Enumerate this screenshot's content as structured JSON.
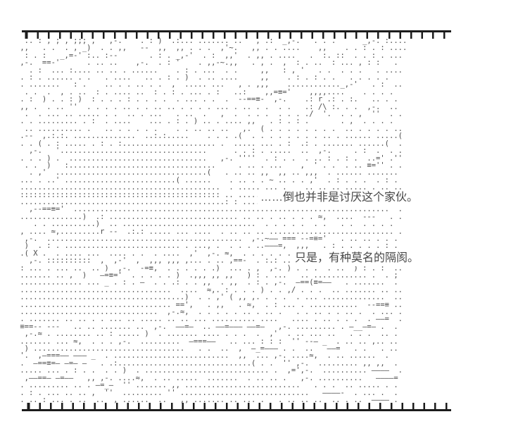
{
  "panel": {
    "type_note": "ascii-art comic panel",
    "dialogue1": "……倒也并非是讨厌这个家伙。",
    "dialogue2": "只是，有种莫名的隔阂。",
    "ink_color": "#4a4a4a",
    "border_color": "#1c1c1c",
    "background_color": "#ffffff"
  },
  "ascii_art": {
    "lines": [
      "  .. : , ; , ;;; ,   ,-.    . : )  .:... ....... ..   , .:  _,-.   . . .      _,-. :....",
      " ,,   . .  . , _)  . . ,,   --  ,,  ,, . . .  ,'~.   ,, . . ....    ,,    . . : . : ....",
      "  : . :   _,=-' :.. :--       . : . _,-'  . :  ,,'  . ,, . ....   .  :. ::  . . : . ...",
      " ,-.  ==-'      . .. ..    ,-.  . : '    . ,,-~.,,   . , .  ,  : . ..  : ... , : :   . ",
      "   . :  ... :.... .. .. . ......    . : . ...  . .     ,,   : , '   . .  . . .   . ....",
      " . : . ...... . .   . ....   .. . : . )  . .. ....     ,,    . : . : . .   . . . . .   ",
      " . .......   : .    .. . . .. . .  ,  ..... ...   , . ,,,    ............_,-'   . :  ..",
      "  . .  .  , . ..  : . .... ..  : . : . ... . :   ..:    ,,=≡='    ,,,,....    . . . .  ",
      " . :  ) . . : )  : . . . : . . . .  . ... . .  .  --==≡-  ,-.    .: r .: . :.   .. . . ",
      " ,, .  . .. ''  . . . . .. . . .. .. . . . . ... . .. . .  . .   .: /\\ :. . .  ,-.  .. ",
      "  .  . ... .. ..... . .  .. . ...   . ..  .   ,  .  . . .  . . . ./  '.  . . ,  ''  . .",
      " . . ......... . :  . ....    ... . : . ) .. . .... ,,   . : . : .       . ,  . . . .  ",
      "  .. .......... .   .. . . . . .    . . .. .. ..   ,.  ( . . . . . . . .  .. . . . . ..",
      " .--  ,.:.:. ..............  ..:.:.....    . . . .(  . . . . . . . . .. . ...... .....(",
      " . . ( . : ..... . : . :..................... .  ..... ... . :  .: . ....... ......(  .",
      "   ,-.   '.................................      . . : . .....  ..  ,-.     . :  .  . .",
      " . . . ) .  ...............................   ,-. ''''  . : . .  . .. : . : .  ..=' .''",
      "  . .  )   :.................................     . .. . ...    ,  ' . .  . .. ≡='' . .",
      "   . ,'  ..................................(   . .. .. ,,  ,, .. ,,,  . ...... ....... ",
      " ... . ..' .........................( ......    . .. . . ~ .. . . ,'  . : . . .  . : . ",
      " .............................................  . ..... ... .    .. .. .. ..... . .. ..",
      " ::::::::::::::::::::::::::::::::::::::::::::: .. ..... ...      .. ... .. ...... .. : .",
      " ..............................................: : ...................................:",
      "   ,--==≡='  .......................................................................  . ",
      " ..............)  .: ............................. .. .. . .. . . . ≈,  ....  ---   . .",
      "    . . ..........)  .. ..............................  . . . . .  . .   . .  . . . .  ",
      " , .... ≈,.........r --  .:.: ..... ... ....  . .. .. .. ............................ .",
      "  ,-.  ............................................  ,-.~—— === --=≡='   . .. .. . . . ",
      "  )  . : . .......................... . ..., .  . . . ..—–—=,  ,,,   . : . . . . . : . ",
      " .( X .  . .... ...  .... . .  . ....  ,'  ,-. ≈,  . . . . . . . . . . .  . . : . :  . ",
      "   ,-. ::::::::::  ,  ,-'  ,  ,,, ,,, ,... . .. ,==-  . :.: .. ::  ... .. ,.:  .  ,-.  ",
      " : ... . ... ..  .. )  ,-.  -=≡,  . . . . . .)  ... . ,  ,-. ) . . .  . ..  ) : . :  ..",
      " ....... .. ,  )   —=≡='  . . . . . )  .,,, ,, ,,   ) : . ...   .. ............ .  . ; ",
      " .............. ... _ . : . —  . . .: . . ,,  . ,,  . : . ,-.  —==(≡=——   . .......  . ",
      " ..................................  ....  ≈,. : . . . ) . . ,/ . . .  .. ....... .. ..",
      " .....................................)  . . ,' ( ,, ,. . . .  . ... ..............  ..",
      " .................................. ==',   . ,,   . ≈,  . : ... . ...........  --==≡ ..",
      " ...............................  ,-.≈,  . . . . . .. . .. .   . . .. . . .. .  . ... .",
      " . ....... .. .. . . ... .. ..... .. .. ... .......... ....   .... . .. . . .  . —–=  . ",
      " ≡==-- ---   .. .. ....... ..  ,-.  ——=—  .. —–=——— ——=–   ,-. ......... . —__—=— .  . ",
      "  ,-.≈ . ........ .. : ..... )  . ....... .... . . .  .  ,'  . .. ... ..   . . .  .. .  ",
      " ....... ... ≈,  . . . ,-.  .........  —===——   .. ... : : :  '' --— _  . .. .. ,.. .. ",
      "  ) ..................................   . .  ..  ,  —_=——— . .  ..   —–=   . .   . .. ",
      " '.  ,—===—— ——— _  . ..........................  ,,  ... ,-. ....≈,  . .. ......  .   ",
      " .  —==≡=— —=— —   . .:..............................( . .  '' ,-.  ......... ,, ,,  . ",
      " ..... ... . : . .  . . )  . ............................ .  ,=',-.  .......... ——––  .",
      "  ,——==— —=——   ,, ,-. ....≈,  . .. .....  .......  . .. .. .   ,-. ..........   —––—= ",
      " . ......... .. . —=_—  '' ....... ,, ..........................   . . .  .. ..... . . ",
      " . : . ... .. .. ,  ''  ......... '' .............................   ————-  . ... .  . ",
      " . .. : ... . ..  ..  , ......  ..   ,, ....... .. ... .   . .. .. ..  .. . ..  —––– . "
    ]
  }
}
